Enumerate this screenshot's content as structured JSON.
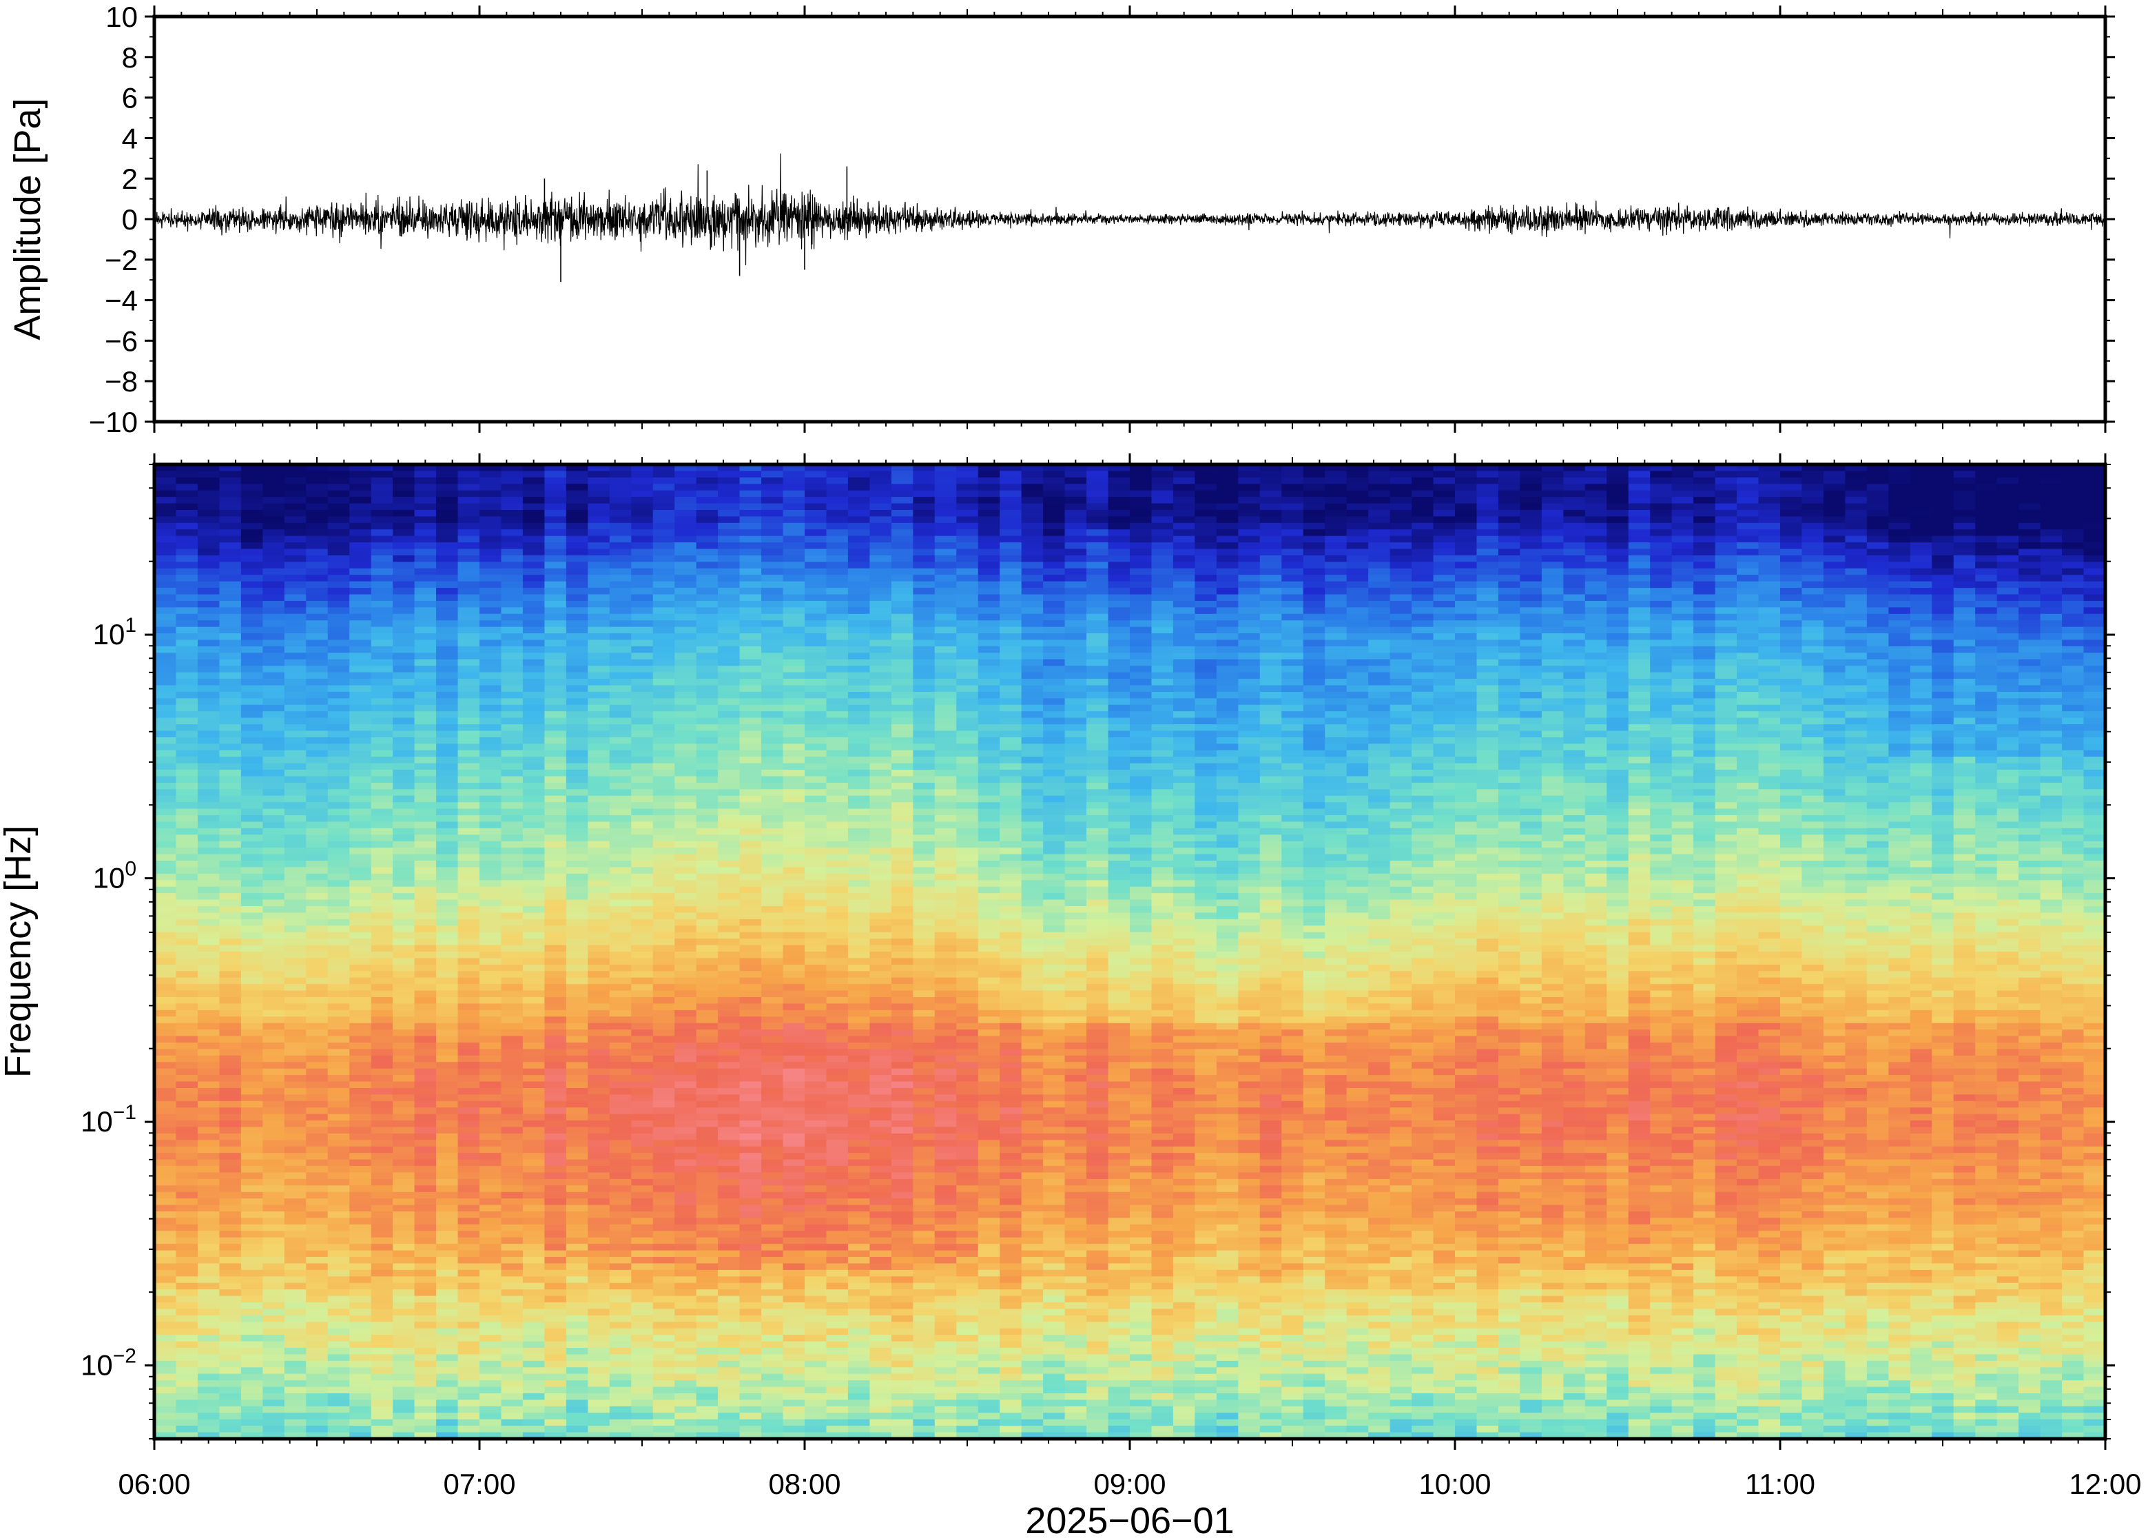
{
  "chart_data": [
    {
      "type": "line",
      "name": "waveform",
      "ylabel": "Amplitude [Pa]",
      "ylim": [
        -10,
        10
      ],
      "yticks": [
        10,
        8,
        6,
        4,
        2,
        0,
        -2,
        -4,
        -6,
        -8,
        -10
      ],
      "xlim": [
        "06:00",
        "12:00"
      ],
      "envelope_hours": [
        6.0,
        6.5,
        6.8,
        7.0,
        7.2,
        7.4,
        7.6,
        7.8,
        8.0,
        8.2,
        8.5,
        8.8,
        9.0,
        9.5,
        10.0,
        10.2,
        10.5,
        10.8,
        11.0,
        11.5,
        12.0
      ],
      "envelope_pa": [
        0.5,
        0.9,
        1.1,
        1.3,
        1.5,
        1.3,
        1.4,
        1.7,
        1.6,
        1.0,
        0.5,
        0.35,
        0.3,
        0.35,
        0.5,
        0.9,
        0.7,
        0.8,
        0.5,
        0.35,
        0.4
      ],
      "spikes": [
        {
          "x": 7.25,
          "y": -3.1
        },
        {
          "x": 7.8,
          "y": -2.8
        },
        {
          "x": 8.13,
          "y": 2.6
        },
        {
          "x": 7.7,
          "y": 2.4
        },
        {
          "x": 7.2,
          "y": 2.0
        },
        {
          "x": 8.0,
          "y": -2.5
        }
      ]
    },
    {
      "type": "heatmap",
      "name": "spectrogram",
      "ylabel": "Frequency [Hz]",
      "yscale": "log",
      "ylim": [
        0.005,
        50
      ],
      "yticks": [
        {
          "value": 10,
          "base": "10",
          "exp": "1"
        },
        {
          "value": 1,
          "base": "10",
          "exp": "0"
        },
        {
          "value": 0.1,
          "base": "10",
          "exp": "−1"
        },
        {
          "value": 0.01,
          "base": "10",
          "exp": "−2"
        }
      ],
      "xlabel": "2025−06−01",
      "xticks": [
        "06:00",
        "07:00",
        "08:00",
        "09:00",
        "10:00",
        "11:00",
        "12:00"
      ],
      "colormap": [
        "#0a0a6e",
        "#1e2ad0",
        "#2a7de8",
        "#3fb8ec",
        "#72e0c9",
        "#d4f09a",
        "#f4d46a",
        "#f7a64a",
        "#f06a54",
        "#f7898e"
      ]
    }
  ]
}
